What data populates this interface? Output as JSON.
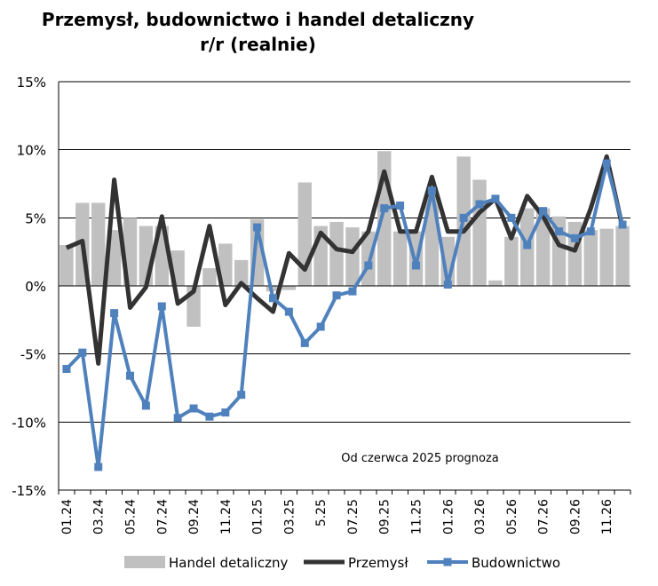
{
  "chart_data": {
    "type": "bar+line",
    "title_lines": [
      "Przemysł, budownictwo i handel detaliczny",
      "r/r (realnie)"
    ],
    "annotation": "Od czerwca 2025 prognoza",
    "y_ticks": [
      15,
      10,
      5,
      0,
      -5,
      -10,
      -15
    ],
    "y_tick_labels": [
      "15%",
      "10%",
      "5%",
      "0%",
      "-5%",
      "-10%",
      "-15%"
    ],
    "ylim": [
      -15,
      15
    ],
    "grid": true,
    "legend_placement": "bottom",
    "x_tick_labels": [
      "01.24",
      "03.24",
      "05.24",
      "07.24",
      "09.24",
      "11.24",
      "01.25",
      "03.25",
      "5.25",
      "07.25",
      "09.25",
      "11.25",
      "01.26",
      "03.26",
      "05.26",
      "07.26",
      "09.26",
      "11.26"
    ],
    "x_tick_every": 2,
    "num_periods": 36,
    "series": [
      {
        "name": "Handel detaliczny",
        "kind": "bar",
        "color": "#c0c0c0",
        "values": [
          3.0,
          6.1,
          6.1,
          4.1,
          5.0,
          4.4,
          4.4,
          2.6,
          -3.0,
          1.3,
          3.1,
          1.9,
          4.9,
          -0.4,
          -0.3,
          7.6,
          4.4,
          4.7,
          4.3,
          4.0,
          9.9,
          4.0,
          4.0,
          6.7,
          3.6,
          9.5,
          7.8,
          0.4,
          3.6,
          5.7,
          5.7,
          5.1,
          4.7,
          4.1,
          4.2,
          4.4
        ]
      },
      {
        "name": "Przemysł",
        "kind": "line",
        "color": "#333333",
        "values": [
          2.8,
          3.3,
          -5.7,
          7.8,
          -1.6,
          -0.1,
          5.1,
          -1.3,
          -0.4,
          4.4,
          -1.4,
          0.2,
          -0.9,
          -1.9,
          2.4,
          1.2,
          3.9,
          2.7,
          2.5,
          4.0,
          8.4,
          4.0,
          4.0,
          8.0,
          4.0,
          4.0,
          5.4,
          6.4,
          3.5,
          6.6,
          5.1,
          3.0,
          2.6,
          5.7,
          9.5,
          4.3
        ]
      },
      {
        "name": "Budownictwo",
        "kind": "line_markers",
        "color": "#4f81bd",
        "values": [
          -6.1,
          -4.9,
          -13.3,
          -2.0,
          -6.6,
          -8.8,
          -1.5,
          -9.7,
          -9.0,
          -9.6,
          -9.3,
          -8.0,
          4.3,
          -0.9,
          -1.9,
          -4.2,
          -3.0,
          -0.7,
          -0.4,
          1.5,
          5.7,
          5.9,
          1.5,
          7.0,
          0.1,
          5.0,
          6.0,
          6.4,
          5.0,
          3.0,
          5.5,
          4.0,
          3.5,
          4.0,
          9.0,
          4.5
        ]
      }
    ]
  }
}
